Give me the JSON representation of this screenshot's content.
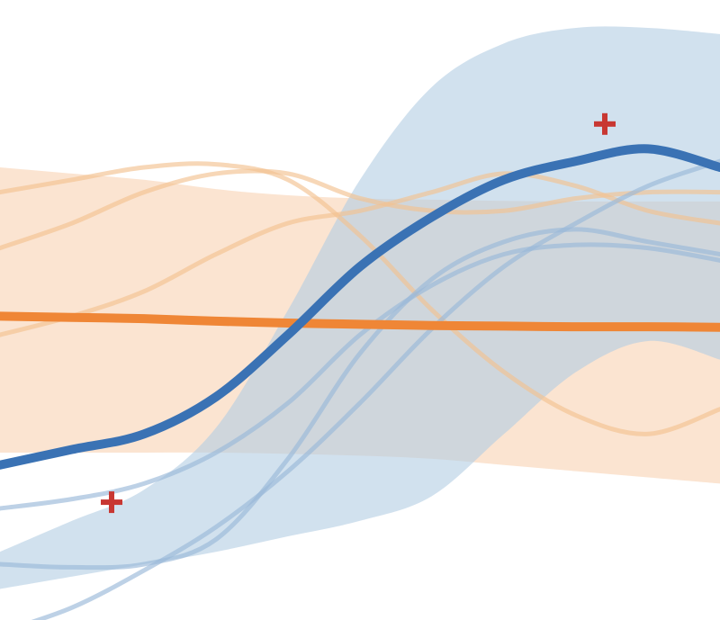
{
  "chart_data": {
    "type": "line",
    "title": "",
    "xlabel": "",
    "ylabel": "",
    "xlim": [
      0,
      10
    ],
    "ylim": [
      0,
      10
    ],
    "grid": false,
    "legend": "none",
    "colors": {
      "blue_mean": "#3a72b4",
      "blue_band": "#b3cde3",
      "blue_sample": "#9ab9d8",
      "orange_mean": "#ef8636",
      "orange_band": "#f9d9bd",
      "orange_sample": "#f3c291",
      "marker": "#c83732"
    },
    "series": [
      {
        "key": "blue",
        "kind": "mean",
        "x": [
          0,
          1,
          2,
          3,
          4,
          5,
          6,
          7,
          8,
          9,
          10
        ],
        "y": [
          2.5,
          2.75,
          3.0,
          3.6,
          4.6,
          5.7,
          6.5,
          7.1,
          7.4,
          7.6,
          7.3
        ],
        "band_upper": [
          1.1,
          1.6,
          2.1,
          3.1,
          5.0,
          7.1,
          8.6,
          9.3,
          9.55,
          9.55,
          9.45
        ],
        "band_lower": [
          0.5,
          0.7,
          0.9,
          1.1,
          1.35,
          1.6,
          2.0,
          3.0,
          4.0,
          4.5,
          4.2
        ],
        "samples": [
          {
            "x": [
              0,
              1,
              2,
              3,
              4,
              5,
              6,
              7,
              8,
              9,
              10
            ],
            "y": [
              1.8,
              1.95,
              2.2,
              2.7,
              3.5,
              4.6,
              5.4,
              5.9,
              6.05,
              6.0,
              5.8
            ]
          },
          {
            "x": [
              0,
              1,
              2,
              3,
              4,
              5,
              6,
              7,
              8,
              9,
              10
            ],
            "y": [
              0.9,
              0.85,
              0.9,
              1.3,
              2.6,
              4.3,
              5.5,
              6.1,
              6.3,
              6.1,
              5.9
            ]
          },
          {
            "x": [
              0,
              1,
              2,
              3,
              4,
              5,
              6,
              7,
              8,
              9,
              10
            ],
            "y": [
              -0.2,
              0.2,
              0.8,
              1.5,
              2.4,
              3.5,
              4.7,
              5.7,
              6.4,
              7.0,
              7.4
            ]
          }
        ]
      },
      {
        "key": "orange",
        "kind": "mean",
        "x": [
          0,
          1,
          2,
          3,
          4,
          5,
          6,
          7,
          8,
          9,
          10
        ],
        "y": [
          4.9,
          4.88,
          4.86,
          4.82,
          4.79,
          4.77,
          4.75,
          4.74,
          4.73,
          4.73,
          4.72
        ],
        "band_upper": [
          7.3,
          7.2,
          7.1,
          6.95,
          6.85,
          6.8,
          6.78,
          6.76,
          6.75,
          6.75,
          6.75
        ],
        "band_lower": [
          2.7,
          2.7,
          2.7,
          2.7,
          2.68,
          2.65,
          2.6,
          2.5,
          2.4,
          2.3,
          2.2
        ],
        "samples": [
          {
            "x": [
              0,
              1,
              2,
              3,
              4,
              5,
              6,
              7,
              8,
              9,
              10
            ],
            "y": [
              6.9,
              7.1,
              7.3,
              7.35,
              7.1,
              6.2,
              5.0,
              4.0,
              3.3,
              3.0,
              3.4
            ]
          },
          {
            "x": [
              0,
              1,
              2,
              3,
              4,
              5,
              6,
              7,
              8,
              9,
              10
            ],
            "y": [
              6.0,
              6.4,
              6.9,
              7.2,
              7.2,
              6.8,
              6.6,
              6.6,
              6.8,
              6.9,
              6.9
            ]
          },
          {
            "x": [
              0,
              1,
              2,
              3,
              4,
              5,
              6,
              7,
              8,
              9,
              10
            ],
            "y": [
              4.6,
              4.9,
              5.3,
              5.9,
              6.4,
              6.6,
              6.9,
              7.2,
              7.0,
              6.6,
              6.4
            ]
          }
        ]
      }
    ],
    "markers": [
      {
        "x": 1.55,
        "y": 1.9,
        "shape": "plus"
      },
      {
        "x": 8.4,
        "y": 8.0,
        "shape": "plus"
      }
    ]
  }
}
